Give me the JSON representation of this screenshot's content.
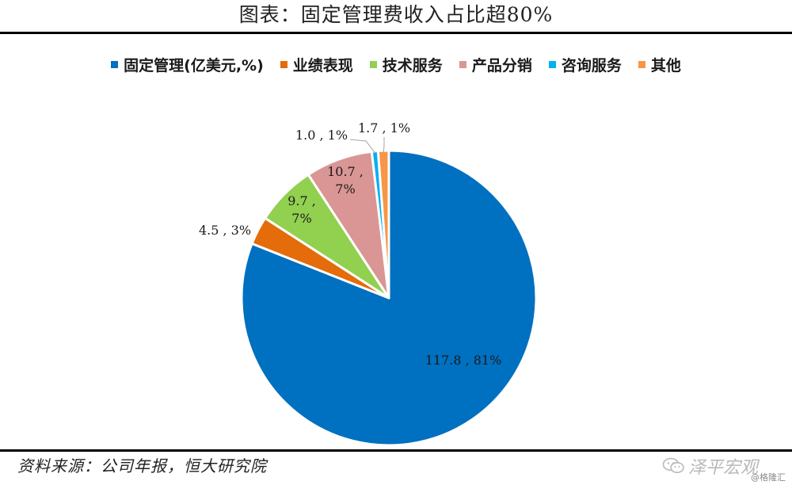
{
  "header": {
    "title": "图表：固定管理费收入占比超80%"
  },
  "chart_data": {
    "type": "pie",
    "unit_label": "(亿美元,%)",
    "series": [
      {
        "name": "固定管理",
        "value": 117.8,
        "percent": "81%",
        "color": "#0070C0",
        "label_line1": "117.8 , 81%",
        "label_line2": ""
      },
      {
        "name": "业绩表现",
        "value": 4.5,
        "percent": "3%",
        "color": "#E46C0A",
        "label_line1": "4.5 , 3%",
        "label_line2": ""
      },
      {
        "name": "技术服务",
        "value": 9.7,
        "percent": "7%",
        "color": "#92D050",
        "label_line1": "9.7 ,",
        "label_line2": "7%"
      },
      {
        "name": "产品分销",
        "value": 10.7,
        "percent": "7%",
        "color": "#D99694",
        "label_line1": "10.7 ,",
        "label_line2": "7%"
      },
      {
        "name": "咨询服务",
        "value": 1.0,
        "percent": "1%",
        "color": "#00B0F0",
        "label_line1": "1.0 , 1%",
        "label_line2": ""
      },
      {
        "name": "其他",
        "value": 1.7,
        "percent": "1%",
        "color": "#F79646",
        "label_line1": "1.7 , 1%",
        "label_line2": ""
      }
    ],
    "legend_position": "top"
  },
  "footer": {
    "source": "资料来源：公司年报，恒大研究院",
    "watermark_text": "泽平宏观",
    "watermark_icon": "wechat-icon",
    "credit": "@格隆汇"
  }
}
